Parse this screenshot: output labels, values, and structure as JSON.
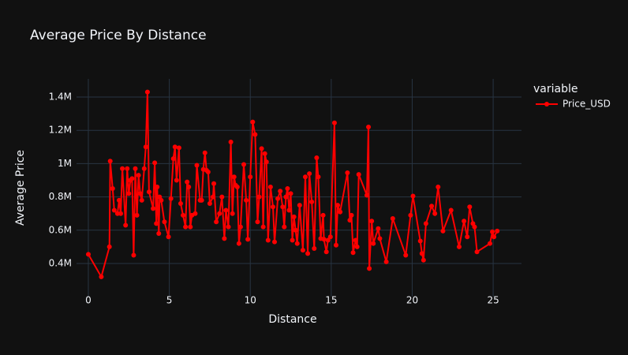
{
  "chart_data": {
    "type": "line",
    "title": "Average Price By Distance",
    "x_label": "Distance",
    "y_label": "Average Price",
    "legend_title": "variable",
    "legend": "right",
    "grid": true,
    "x": [
      0,
      0.8,
      1.3,
      1.35,
      1.5,
      1.6,
      1.8,
      1.9,
      2.0,
      2.1,
      2.3,
      2.4,
      2.5,
      2.6,
      2.7,
      2.8,
      2.9,
      3.0,
      3.1,
      3.2,
      3.3,
      3.45,
      3.55,
      3.65,
      3.75,
      4.0,
      4.1,
      4.2,
      4.25,
      4.35,
      4.4,
      4.5,
      4.7,
      4.95,
      5.1,
      5.25,
      5.35,
      5.45,
      5.6,
      5.7,
      5.85,
      6.0,
      6.1,
      6.2,
      6.3,
      6.4,
      6.6,
      6.7,
      6.9,
      7.0,
      7.1,
      7.2,
      7.3,
      7.4,
      7.5,
      7.7,
      7.75,
      7.9,
      8.1,
      8.25,
      8.4,
      8.5,
      8.65,
      8.8,
      8.9,
      9.0,
      9.1,
      9.2,
      9.3,
      9.4,
      9.6,
      9.75,
      9.85,
      10.0,
      10.15,
      10.3,
      10.45,
      10.55,
      10.7,
      10.8,
      10.9,
      11.0,
      11.1,
      11.25,
      11.4,
      11.5,
      11.7,
      11.85,
      12.0,
      12.1,
      12.2,
      12.3,
      12.4,
      12.5,
      12.6,
      12.7,
      12.8,
      12.9,
      13.05,
      13.25,
      13.4,
      13.55,
      13.65,
      13.8,
      13.95,
      14.1,
      14.2,
      14.35,
      14.5,
      14.55,
      14.7,
      14.8,
      14.95,
      15.2,
      15.3,
      15.4,
      15.55,
      16.0,
      16.15,
      16.25,
      16.35,
      16.5,
      16.6,
      16.7,
      17.2,
      17.3,
      17.35,
      17.5,
      17.6,
      17.9,
      18.0,
      18.4,
      18.8,
      19.6,
      19.9,
      20.05,
      20.5,
      20.6,
      20.7,
      20.85,
      21.2,
      21.4,
      21.6,
      21.9,
      22.4,
      22.9,
      23.2,
      23.4,
      23.55,
      23.75,
      23.85,
      24.0,
      24.8,
      24.95,
      25.05,
      25.25
    ],
    "series": [
      {
        "name": "Price_USD",
        "color": "#ff0000",
        "values": [
          455000,
          320000,
          500000,
          1015000,
          850000,
          720000,
          700000,
          780000,
          700000,
          970000,
          630000,
          970000,
          820000,
          900000,
          910000,
          450000,
          970000,
          690000,
          930000,
          820000,
          780000,
          970000,
          1100000,
          1430000,
          830000,
          730000,
          1005000,
          640000,
          860000,
          580000,
          800000,
          780000,
          650000,
          560000,
          790000,
          1030000,
          1100000,
          900000,
          1095000,
          760000,
          690000,
          620000,
          890000,
          860000,
          620000,
          690000,
          700000,
          990000,
          780000,
          780000,
          965000,
          1065000,
          960000,
          950000,
          760000,
          800000,
          880000,
          650000,
          700000,
          800000,
          550000,
          720000,
          620000,
          1130000,
          700000,
          920000,
          870000,
          860000,
          520000,
          620000,
          995000,
          780000,
          545000,
          920000,
          1250000,
          1175000,
          650000,
          800000,
          1090000,
          620000,
          1060000,
          1010000,
          540000,
          860000,
          740000,
          530000,
          790000,
          835000,
          740000,
          620000,
          800000,
          850000,
          720000,
          820000,
          540000,
          680000,
          600000,
          520000,
          750000,
          480000,
          920000,
          460000,
          940000,
          770000,
          490000,
          1035000,
          920000,
          550000,
          690000,
          545000,
          470000,
          540000,
          560000,
          1245000,
          510000,
          750000,
          710000,
          945000,
          660000,
          690000,
          465000,
          540000,
          500000,
          935000,
          810000,
          1220000,
          370000,
          655000,
          520000,
          610000,
          550000,
          410000,
          670000,
          450000,
          690000,
          805000,
          535000,
          460000,
          420000,
          640000,
          745000,
          700000,
          860000,
          595000,
          720000,
          500000,
          655000,
          560000,
          740000,
          640000,
          620000,
          470000,
          520000,
          590000,
          560000,
          595000
        ]
      }
    ],
    "xlim": [
      -0.73,
      26.75
    ],
    "ylim": [
      201000,
      1509000
    ],
    "xticks": [
      0,
      5,
      10,
      15,
      20,
      25
    ],
    "yticks": [
      {
        "value": 400000,
        "label": "0.4M"
      },
      {
        "value": 600000,
        "label": "0.6M"
      },
      {
        "value": 800000,
        "label": "0.8M"
      },
      {
        "value": 1000000,
        "label": "1M"
      },
      {
        "value": 1200000,
        "label": "1.2M"
      },
      {
        "value": 1400000,
        "label": "1.4M"
      }
    ]
  }
}
